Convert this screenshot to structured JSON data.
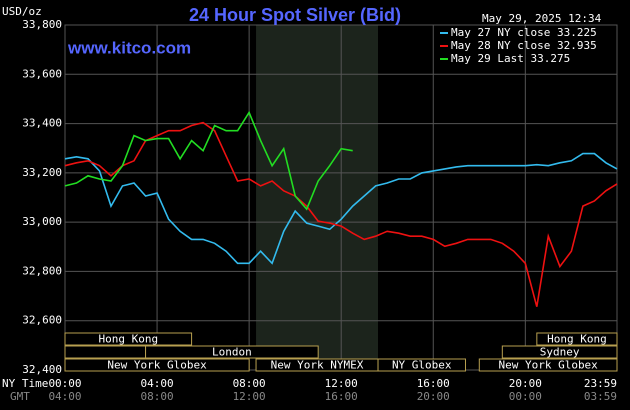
{
  "chart_data": {
    "type": "line",
    "title": "24 Hour Spot Silver (Bid)",
    "timestamp": "May 29, 2025 12:34",
    "watermark": "www.kitco.com",
    "ylabel": "USD/oz",
    "xlabel": "NY Time",
    "x2label": "GMT",
    "ylim": [
      32400,
      33800
    ],
    "yticks": [
      {
        "value": 32400,
        "label": "32,400"
      },
      {
        "value": 32600,
        "label": "32,600"
      },
      {
        "value": 32800,
        "label": "32,800"
      },
      {
        "value": 33000,
        "label": "33,000"
      },
      {
        "value": 33200,
        "label": "33,200"
      },
      {
        "value": 33400,
        "label": "33,400"
      },
      {
        "value": 33600,
        "label": "33,600"
      },
      {
        "value": 33800,
        "label": "33,800"
      }
    ],
    "xlim": [
      0,
      23.983
    ],
    "xticks": [
      {
        "value": 0,
        "label": "00:00"
      },
      {
        "value": 4,
        "label": "04:00"
      },
      {
        "value": 8,
        "label": "08:00"
      },
      {
        "value": 12,
        "label": "12:00"
      },
      {
        "value": 16,
        "label": "16:00"
      },
      {
        "value": 20,
        "label": "20:00"
      },
      {
        "value": 23.983,
        "label": "23:59"
      }
    ],
    "x2tick_labels": [
      "04:00",
      "08:00",
      "12:00",
      "16:00",
      "20:00",
      "00:00",
      "03:59"
    ],
    "grid": true,
    "sessions": [
      {
        "label": "Hong Kong",
        "start": 0,
        "end": 5.5,
        "row": 1
      },
      {
        "label": null,
        "start": 0,
        "end": 3.5,
        "row": 2
      },
      {
        "label": "London",
        "start": 3.5,
        "end": 11,
        "row": 2
      },
      {
        "label": "New York Globex",
        "start": 0,
        "end": 8,
        "row": 3
      },
      {
        "label": "New York NYMEX",
        "start": 8.3,
        "end": 13.6,
        "row": 3,
        "highlight": true
      },
      {
        "label": "NY Globex",
        "start": 13.6,
        "end": 17.4,
        "row": 3
      },
      {
        "label": "Hong Kong",
        "start": 20.5,
        "end": 23.983,
        "row": 1
      },
      {
        "label": "Sydney",
        "start": 19,
        "end": 23.983,
        "row": 2
      },
      {
        "label": "New York Globex",
        "start": 18,
        "end": 23.983,
        "row": 3
      }
    ],
    "series": [
      {
        "name": "May 27 NY close 33.225",
        "color": "#33bbee",
        "x": [
          0,
          0.5,
          1,
          1.5,
          2,
          2.5,
          3,
          3.5,
          4,
          4.5,
          5,
          5.5,
          6,
          6.5,
          7,
          7.5,
          8,
          8.5,
          9,
          9.5,
          10,
          10.5,
          11,
          11.5,
          12,
          12.5,
          13,
          13.5,
          14,
          14.5,
          15,
          15.5,
          16,
          16.5,
          17,
          17.5,
          18,
          18.5,
          19,
          19.5,
          20,
          20.5,
          21,
          21.5,
          22,
          22.5,
          23,
          23.5,
          23.983
        ],
        "values": [
          33257,
          33265,
          33257,
          33208,
          33065,
          33147,
          33159,
          33106,
          33118,
          33012,
          32963,
          32930,
          32930,
          32914,
          32882,
          32833,
          32833,
          32882,
          32833,
          32963,
          33045,
          32996,
          32984,
          32971,
          33012,
          33065,
          33106,
          33147,
          33159,
          33175,
          33175,
          33200,
          33208,
          33216,
          33224,
          33229,
          33229,
          33229,
          33229,
          33229,
          33229,
          33233,
          33229,
          33241,
          33249,
          33278,
          33278,
          33241,
          33216
        ]
      },
      {
        "name": "May 28 NY close 32.935",
        "color": "#ee1111",
        "x": [
          0,
          0.5,
          1,
          1.5,
          2,
          2.5,
          3,
          3.5,
          4,
          4.5,
          5,
          5.5,
          6,
          6.5,
          7,
          7.5,
          8,
          8.5,
          9,
          9.5,
          10,
          10.5,
          11,
          11.5,
          12,
          12.5,
          13,
          13.5,
          14,
          14.5,
          15,
          15.5,
          16,
          16.5,
          17,
          17.5,
          18,
          18.5,
          19,
          19.5,
          20,
          20.5,
          21,
          21.5,
          22,
          22.5,
          23,
          23.5,
          23.983
        ],
        "values": [
          33229,
          33241,
          33249,
          33229,
          33188,
          33229,
          33249,
          33331,
          33351,
          33371,
          33371,
          33392,
          33404,
          33371,
          33269,
          33167,
          33175,
          33147,
          33167,
          33127,
          33106,
          33065,
          33004,
          32996,
          32984,
          32955,
          32930,
          32943,
          32963,
          32955,
          32943,
          32943,
          32930,
          32902,
          32914,
          32930,
          32930,
          32930,
          32914,
          32882,
          32833,
          32657,
          32943,
          32820,
          32882,
          33065,
          33086,
          33127,
          33155
        ]
      },
      {
        "name": "May 29 Last 33.275",
        "color": "#22dd22",
        "x": [
          0,
          0.5,
          1,
          1.5,
          2,
          2.5,
          3,
          3.5,
          4,
          4.5,
          5,
          5.5,
          6,
          6.5,
          7,
          7.5,
          8,
          8.5,
          9,
          9.5,
          10,
          10.5,
          11,
          11.5,
          12,
          12.5
        ],
        "values": [
          33147,
          33159,
          33188,
          33175,
          33167,
          33229,
          33351,
          33331,
          33339,
          33339,
          33257,
          33331,
          33290,
          33392,
          33371,
          33371,
          33445,
          33331,
          33229,
          33298,
          33106,
          33053,
          33167,
          33229,
          33298,
          33290
        ]
      }
    ]
  }
}
